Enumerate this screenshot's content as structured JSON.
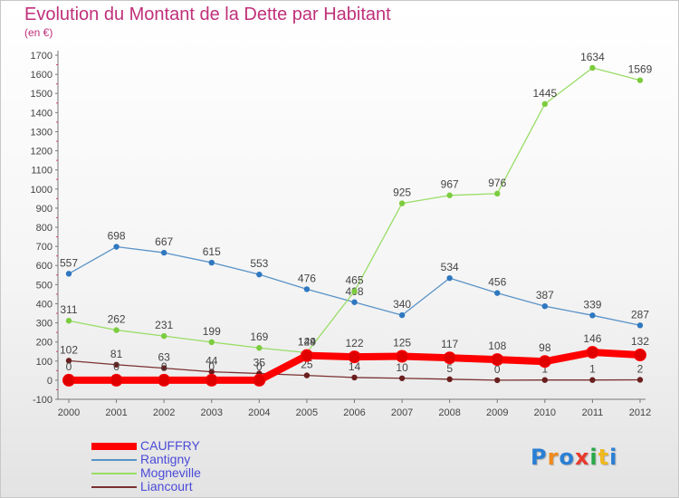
{
  "title": "Evolution du Montant de la Dette par Habitant",
  "unit_label": "(en €)",
  "logo": {
    "text": "Proxiti",
    "letters": [
      {
        "ch": "P",
        "color": "#2a7fd4"
      },
      {
        "ch": "r",
        "color": "#f08a1c"
      },
      {
        "ch": "o",
        "color": "#2a7fd4"
      },
      {
        "ch": "x",
        "color": "#e83a2c"
      },
      {
        "ch": "i",
        "color": "#2aa84a"
      },
      {
        "ch": "t",
        "color": "#f0b81c"
      },
      {
        "ch": "i",
        "color": "#2a7fd4"
      }
    ]
  },
  "chart_data": {
    "type": "line",
    "title": "Evolution du Montant de la Dette par Habitant",
    "ylabel": "(en €)",
    "xlabel": "",
    "ylim": [
      -100,
      1700
    ],
    "y_ticks": [
      -100,
      0,
      100,
      200,
      300,
      400,
      500,
      600,
      700,
      800,
      900,
      1000,
      1100,
      1200,
      1300,
      1400,
      1500,
      1600,
      1700
    ],
    "categories": [
      "2000",
      "2001",
      "2002",
      "2003",
      "2004",
      "2005",
      "2006",
      "2007",
      "2008",
      "2009",
      "2010",
      "2011",
      "2012"
    ],
    "grid": false,
    "legend_position": "bottom-left",
    "series": [
      {
        "name": "CAUFFRY",
        "color": "#ff0000",
        "marker_color": "#e00000",
        "emphasis": true,
        "values": [
          0,
          0,
          0,
          0,
          0,
          129,
          122,
          125,
          117,
          108,
          98,
          146,
          132
        ]
      },
      {
        "name": "Rantigny",
        "color": "#5a93c8",
        "marker_color": "#2f78c0",
        "values": [
          557,
          698,
          667,
          615,
          553,
          476,
          408,
          340,
          534,
          456,
          387,
          339,
          287
        ]
      },
      {
        "name": "Mogneville",
        "color": "#99dd66",
        "marker_color": "#7ccc3e",
        "values": [
          311,
          262,
          231,
          199,
          169,
          144,
          465,
          925,
          967,
          976,
          1445,
          1634,
          1569
        ]
      },
      {
        "name": "Liancourt",
        "color": "#7a3030",
        "marker_color": "#6a1e1e",
        "values": [
          102,
          81,
          63,
          44,
          35,
          25,
          14,
          10,
          5,
          0,
          1,
          1,
          2
        ]
      }
    ]
  }
}
